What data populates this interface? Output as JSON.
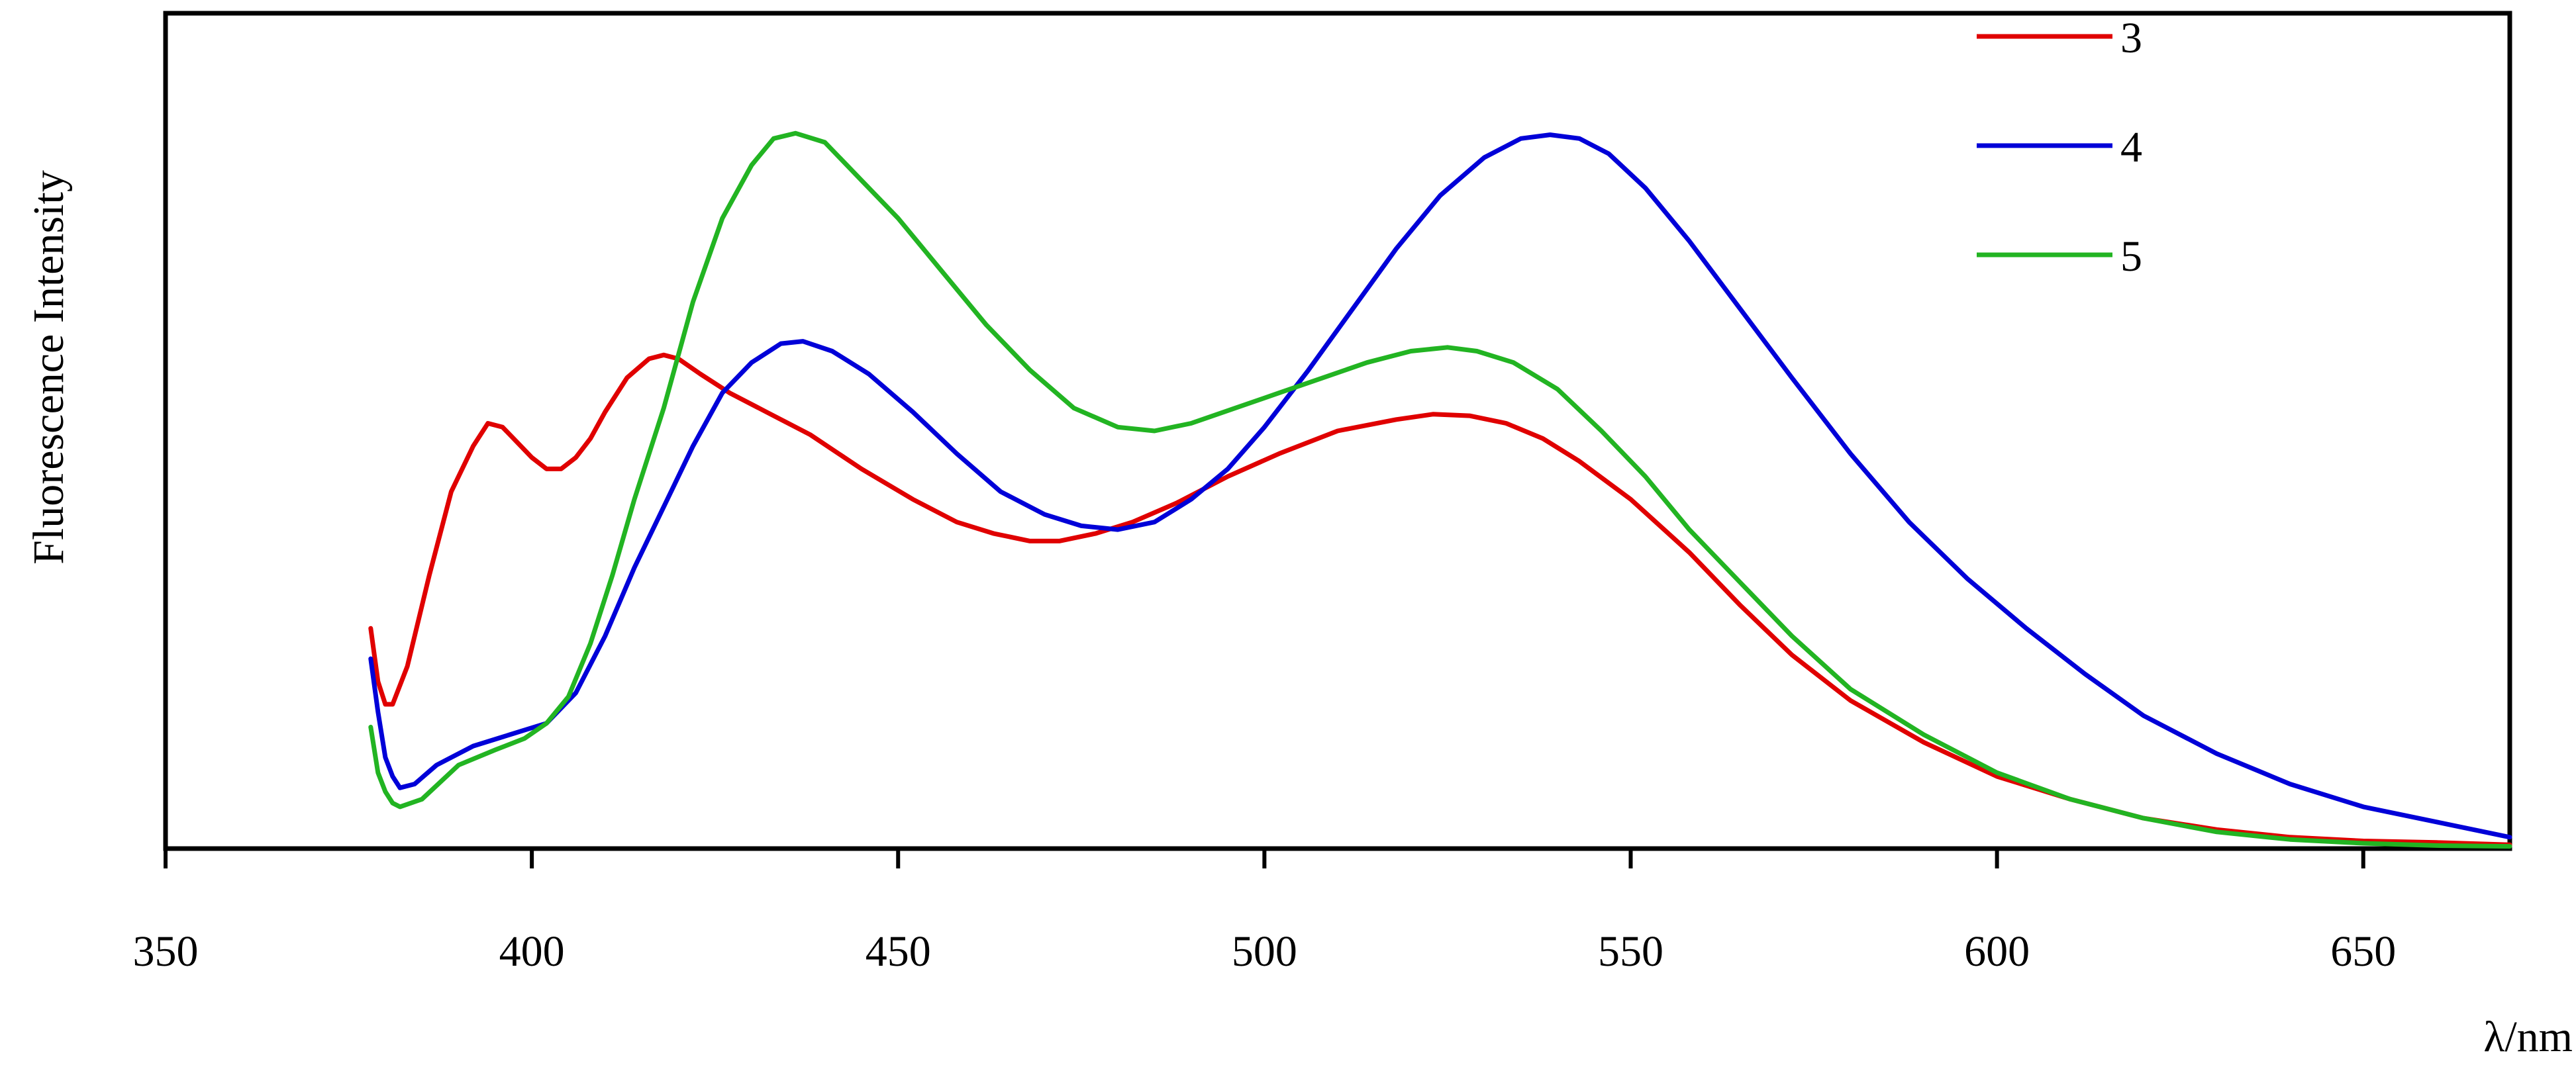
{
  "chart_data": {
    "type": "line",
    "title": "",
    "xlabel": "λ/nm",
    "ylabel": "Fluorescence Intensity",
    "xlim": [
      350,
      670
    ],
    "ylim": [
      0,
      1.1
    ],
    "x_ticks": [
      "350",
      "400",
      "450",
      "500",
      "550",
      "600",
      "650"
    ],
    "y_ticks_shown": false,
    "grid": false,
    "legend_position": "top-right",
    "series": [
      {
        "name": "3",
        "color": "#e00000",
        "points": [
          [
            378,
            0.29
          ],
          [
            379,
            0.22
          ],
          [
            380,
            0.19
          ],
          [
            381,
            0.19
          ],
          [
            383,
            0.24
          ],
          [
            386,
            0.36
          ],
          [
            389,
            0.47
          ],
          [
            392,
            0.53
          ],
          [
            394,
            0.56
          ],
          [
            396,
            0.555
          ],
          [
            398,
            0.535
          ],
          [
            400,
            0.515
          ],
          [
            402,
            0.5
          ],
          [
            404,
            0.5
          ],
          [
            406,
            0.515
          ],
          [
            408,
            0.54
          ],
          [
            410,
            0.575
          ],
          [
            413,
            0.62
          ],
          [
            416,
            0.645
          ],
          [
            418,
            0.65
          ],
          [
            420,
            0.645
          ],
          [
            423,
            0.625
          ],
          [
            427,
            0.6
          ],
          [
            432,
            0.575
          ],
          [
            438,
            0.545
          ],
          [
            445,
            0.5
          ],
          [
            452,
            0.46
          ],
          [
            458,
            0.43
          ],
          [
            463,
            0.415
          ],
          [
            468,
            0.405
          ],
          [
            472,
            0.405
          ],
          [
            477,
            0.415
          ],
          [
            482,
            0.43
          ],
          [
            488,
            0.455
          ],
          [
            495,
            0.49
          ],
          [
            502,
            0.52
          ],
          [
            510,
            0.55
          ],
          [
            518,
            0.565
          ],
          [
            523,
            0.572
          ],
          [
            528,
            0.57
          ],
          [
            533,
            0.56
          ],
          [
            538,
            0.54
          ],
          [
            543,
            0.51
          ],
          [
            550,
            0.46
          ],
          [
            558,
            0.39
          ],
          [
            565,
            0.32
          ],
          [
            572,
            0.255
          ],
          [
            580,
            0.195
          ],
          [
            590,
            0.14
          ],
          [
            600,
            0.095
          ],
          [
            610,
            0.065
          ],
          [
            620,
            0.04
          ],
          [
            630,
            0.025
          ],
          [
            640,
            0.015
          ],
          [
            650,
            0.01
          ],
          [
            660,
            0.008
          ],
          [
            670,
            0.005
          ]
        ]
      },
      {
        "name": "4",
        "color": "#0000d8",
        "points": [
          [
            378,
            0.25
          ],
          [
            379,
            0.18
          ],
          [
            380,
            0.12
          ],
          [
            381,
            0.095
          ],
          [
            382,
            0.08
          ],
          [
            384,
            0.085
          ],
          [
            387,
            0.11
          ],
          [
            392,
            0.135
          ],
          [
            397,
            0.15
          ],
          [
            402,
            0.165
          ],
          [
            406,
            0.205
          ],
          [
            410,
            0.28
          ],
          [
            414,
            0.37
          ],
          [
            418,
            0.45
          ],
          [
            422,
            0.53
          ],
          [
            426,
            0.6
          ],
          [
            430,
            0.64
          ],
          [
            434,
            0.665
          ],
          [
            437,
            0.668
          ],
          [
            441,
            0.655
          ],
          [
            446,
            0.625
          ],
          [
            452,
            0.575
          ],
          [
            458,
            0.52
          ],
          [
            464,
            0.47
          ],
          [
            470,
            0.44
          ],
          [
            475,
            0.425
          ],
          [
            480,
            0.42
          ],
          [
            485,
            0.43
          ],
          [
            490,
            0.46
          ],
          [
            495,
            0.5
          ],
          [
            500,
            0.555
          ],
          [
            506,
            0.63
          ],
          [
            512,
            0.71
          ],
          [
            518,
            0.79
          ],
          [
            524,
            0.86
          ],
          [
            530,
            0.91
          ],
          [
            535,
            0.935
          ],
          [
            539,
            0.94
          ],
          [
            543,
            0.935
          ],
          [
            547,
            0.915
          ],
          [
            552,
            0.87
          ],
          [
            558,
            0.8
          ],
          [
            565,
            0.71
          ],
          [
            572,
            0.62
          ],
          [
            580,
            0.52
          ],
          [
            588,
            0.43
          ],
          [
            596,
            0.355
          ],
          [
            604,
            0.29
          ],
          [
            612,
            0.23
          ],
          [
            620,
            0.175
          ],
          [
            630,
            0.125
          ],
          [
            640,
            0.085
          ],
          [
            650,
            0.055
          ],
          [
            660,
            0.035
          ],
          [
            670,
            0.015
          ]
        ]
      },
      {
        "name": "5",
        "color": "#22b422",
        "points": [
          [
            378,
            0.16
          ],
          [
            379,
            0.1
          ],
          [
            380,
            0.075
          ],
          [
            381,
            0.06
          ],
          [
            382,
            0.055
          ],
          [
            385,
            0.065
          ],
          [
            390,
            0.11
          ],
          [
            395,
            0.13
          ],
          [
            399,
            0.145
          ],
          [
            402,
            0.165
          ],
          [
            405,
            0.2
          ],
          [
            408,
            0.27
          ],
          [
            411,
            0.36
          ],
          [
            414,
            0.46
          ],
          [
            418,
            0.58
          ],
          [
            422,
            0.72
          ],
          [
            426,
            0.83
          ],
          [
            430,
            0.9
          ],
          [
            433,
            0.935
          ],
          [
            436,
            0.942
          ],
          [
            440,
            0.93
          ],
          [
            445,
            0.88
          ],
          [
            450,
            0.83
          ],
          [
            456,
            0.76
          ],
          [
            462,
            0.69
          ],
          [
            468,
            0.63
          ],
          [
            474,
            0.58
          ],
          [
            480,
            0.555
          ],
          [
            485,
            0.55
          ],
          [
            490,
            0.56
          ],
          [
            496,
            0.58
          ],
          [
            502,
            0.6
          ],
          [
            508,
            0.62
          ],
          [
            514,
            0.64
          ],
          [
            520,
            0.655
          ],
          [
            525,
            0.66
          ],
          [
            529,
            0.655
          ],
          [
            534,
            0.64
          ],
          [
            540,
            0.605
          ],
          [
            546,
            0.55
          ],
          [
            552,
            0.49
          ],
          [
            558,
            0.42
          ],
          [
            565,
            0.35
          ],
          [
            572,
            0.28
          ],
          [
            580,
            0.21
          ],
          [
            590,
            0.15
          ],
          [
            600,
            0.1
          ],
          [
            610,
            0.065
          ],
          [
            620,
            0.04
          ],
          [
            630,
            0.022
          ],
          [
            640,
            0.012
          ],
          [
            650,
            0.007
          ],
          [
            660,
            0.004
          ],
          [
            670,
            0.003
          ]
        ]
      }
    ]
  }
}
